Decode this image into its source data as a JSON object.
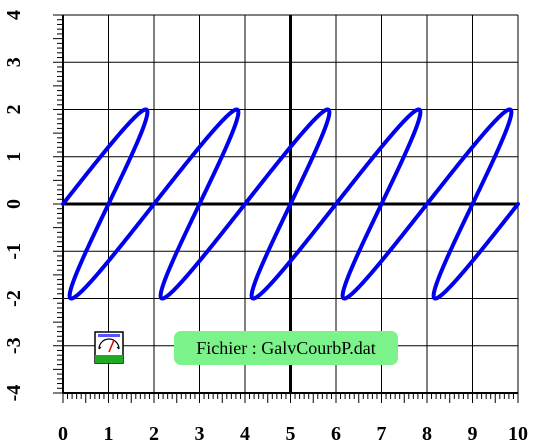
{
  "file_label": "Fichier : GalvCourbP.dat",
  "colors": {
    "curve": "#0000ee",
    "label_bg": "#7cf28a",
    "grid": "#000000"
  },
  "chart_data": {
    "type": "line",
    "title": "",
    "xlabel": "",
    "ylabel": "",
    "xlim": [
      0,
      10
    ],
    "ylim": [
      -4,
      4
    ],
    "xticks": [
      "0",
      "1",
      "2",
      "3",
      "4",
      "5",
      "6",
      "7",
      "8",
      "9",
      "10"
    ],
    "yticks": [
      "-4",
      "-3",
      "-2",
      "-1",
      "0",
      "1",
      "2",
      "3",
      "4"
    ],
    "grid": true,
    "series": [
      {
        "description_points": "prolate cycloid (trochoid) looping curve",
        "x": [
          0.0,
          0.2,
          0.43,
          0.7,
          1.0,
          1.29,
          1.6,
          1.9,
          2.15,
          2.35,
          2.47,
          2.5,
          2.44,
          2.3,
          2.15,
          2.0,
          1.89,
          1.85,
          1.89,
          2.02,
          2.24,
          2.5,
          2.84,
          3.16,
          3.5,
          3.83
        ],
        "y": [
          0.0,
          0.62,
          1.21,
          1.69,
          1.96,
          2.0,
          1.85,
          1.46,
          0.94,
          0.35,
          -0.29,
          -0.9,
          -1.43,
          -1.82,
          -2.0,
          -1.95,
          -1.68,
          -1.2,
          -0.6,
          0.05,
          0.68,
          1.25,
          1.72,
          1.97,
          1.98,
          1.75
        ]
      }
    ]
  }
}
